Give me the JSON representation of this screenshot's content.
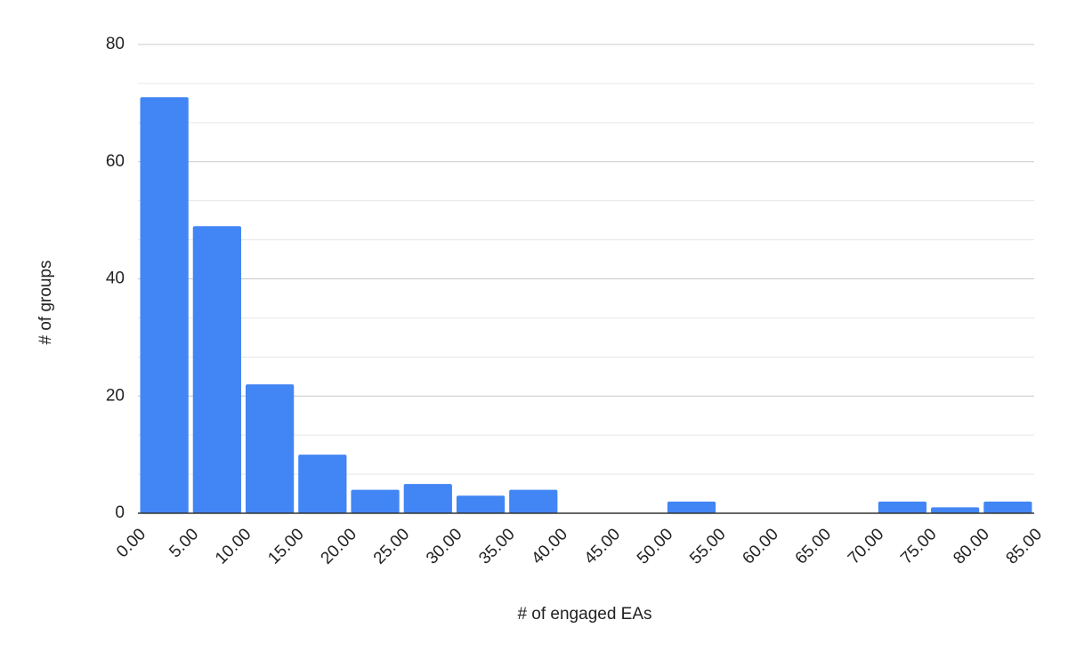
{
  "chart_data": {
    "type": "histogram",
    "x_label": "# of engaged EAs",
    "y_label": "# of groups",
    "bins": [
      0,
      5,
      10,
      15,
      20,
      25,
      30,
      35,
      40,
      45,
      50,
      55,
      60,
      65,
      70,
      75,
      80,
      85
    ],
    "values": [
      71,
      49,
      22,
      10,
      4,
      5,
      3,
      4,
      0,
      0,
      2,
      0,
      0,
      0,
      2,
      1,
      2
    ],
    "color": "#4285f4",
    "xlim": [
      0,
      85
    ],
    "xticks": [
      {
        "value": 0,
        "label": "0.00"
      },
      {
        "value": 5,
        "label": "5.00"
      },
      {
        "value": 10,
        "label": "10.00"
      },
      {
        "value": 15,
        "label": "15.00"
      },
      {
        "value": 20,
        "label": "20.00"
      },
      {
        "value": 25,
        "label": "25.00"
      },
      {
        "value": 30,
        "label": "30.00"
      },
      {
        "value": 35,
        "label": "35.00"
      },
      {
        "value": 40,
        "label": "40.00"
      },
      {
        "value": 45,
        "label": "45.00"
      },
      {
        "value": 50,
        "label": "50.00"
      },
      {
        "value": 55,
        "label": "55.00"
      },
      {
        "value": 60,
        "label": "60.00"
      },
      {
        "value": 65,
        "label": "65.00"
      },
      {
        "value": 70,
        "label": "70.00"
      },
      {
        "value": 75,
        "label": "75.00"
      },
      {
        "value": 80,
        "label": "80.00"
      },
      {
        "value": 85,
        "label": "85.00"
      }
    ],
    "ylim": [
      0,
      80
    ],
    "yticks": [
      0,
      20,
      40,
      60,
      80
    ],
    "grid": true,
    "minor_grid": 3
  }
}
